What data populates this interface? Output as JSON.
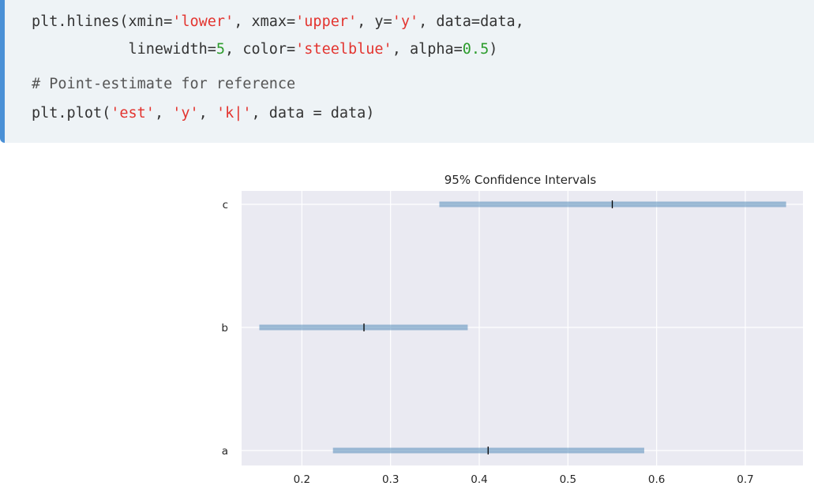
{
  "code": {
    "lines": [
      [
        {
          "t": "plt.hlines(xmin=",
          "k": "plain"
        },
        {
          "t": "'lower'",
          "k": "str"
        },
        {
          "t": ", xmax=",
          "k": "plain"
        },
        {
          "t": "'upper'",
          "k": "str"
        },
        {
          "t": ", y=",
          "k": "plain"
        },
        {
          "t": "'y'",
          "k": "str"
        },
        {
          "t": ", data=data,",
          "k": "plain"
        }
      ],
      [
        {
          "t": "           linewidth=",
          "k": "plain"
        },
        {
          "t": "5",
          "k": "num"
        },
        {
          "t": ", color=",
          "k": "plain"
        },
        {
          "t": "'steelblue'",
          "k": "str"
        },
        {
          "t": ", alpha=",
          "k": "plain"
        },
        {
          "t": "0.5",
          "k": "num"
        },
        {
          "t": ")",
          "k": "plain"
        }
      ],
      [
        {
          "t": "# Point-estimate for reference",
          "k": "com"
        }
      ],
      [
        {
          "t": "plt.plot(",
          "k": "plain"
        },
        {
          "t": "'est'",
          "k": "str"
        },
        {
          "t": ", ",
          "k": "plain"
        },
        {
          "t": "'y'",
          "k": "str"
        },
        {
          "t": ", ",
          "k": "plain"
        },
        {
          "t": "'k|'",
          "k": "str"
        },
        {
          "t": ", data = data)",
          "k": "plain"
        }
      ]
    ]
  },
  "chart_data": {
    "type": "hlines",
    "title": "95% Confidence Intervals",
    "categories": [
      "a",
      "b",
      "c"
    ],
    "lower": [
      0.235,
      0.152,
      0.355
    ],
    "upper": [
      0.586,
      0.387,
      0.746
    ],
    "est": [
      0.41,
      0.27,
      0.55
    ],
    "xticks": [
      0.2,
      0.3,
      0.4,
      0.5,
      0.6,
      0.7
    ],
    "xlim": [
      0.132,
      0.765
    ],
    "grid": true,
    "colors": {
      "bar": "#4682b4",
      "bar_alpha": 0.5,
      "marker": "#000000",
      "plot_bg": "#eaeaf2",
      "grid": "#ffffff"
    }
  }
}
